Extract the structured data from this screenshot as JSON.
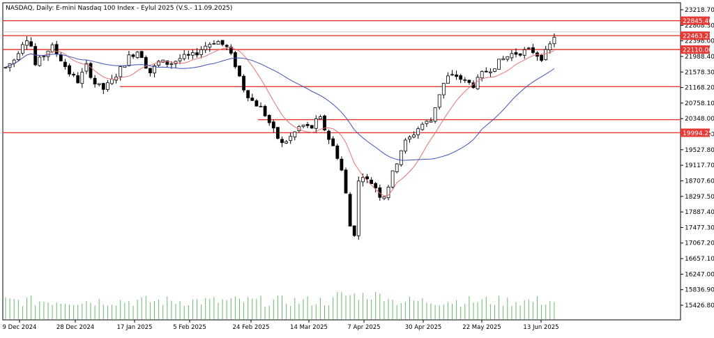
{
  "chart_data": {
    "type": "candlestick",
    "title": "NASDAQ, Daily:  E-mini Nasdaq 100 Index - Eylul 2025 (V.S.- 11.09.2025)",
    "y_ticks": [
      "23218.70",
      "22808.30",
      "22398.00",
      "21988.40",
      "21578.30",
      "21168.20",
      "20758.10",
      "20348.00",
      "19937.90",
      "19527.80",
      "19117.70",
      "18707.60",
      "18297.50",
      "17887.40",
      "17477.30",
      "17067.20",
      "16657.10",
      "16247.00",
      "15836.90",
      "15426.80"
    ],
    "x_ticks": [
      "9 Dec 2024",
      "28 Dec 2024",
      "17 Jan 2025",
      "5 Feb 2025",
      "24 Feb 2025",
      "14 Mar 2025",
      "7 Apr 2025",
      "30 Apr 2025",
      "22 May 2025",
      "13 Jun 2025"
    ],
    "ylim": [
      15234,
      23300
    ],
    "levels": [
      {
        "value": "22845.40",
        "color": "#e53935"
      },
      {
        "value": "22463.23",
        "color": "#e53935"
      },
      {
        "value": "22110.00",
        "color": "#e53935"
      },
      {
        "value": "21168.00",
        "color": "#e53935"
      },
      {
        "value": "20328.00",
        "color": "#e53935"
      },
      {
        "value": "19994.25",
        "color": "#e53935"
      }
    ],
    "labeled_levels": [
      "22845.40",
      "22463.23",
      "22110.00",
      "19994.25"
    ],
    "ma_colors": {
      "fast": "#e57373",
      "slow": "#3f51b5"
    },
    "volume_color": "#66bb6a"
  }
}
